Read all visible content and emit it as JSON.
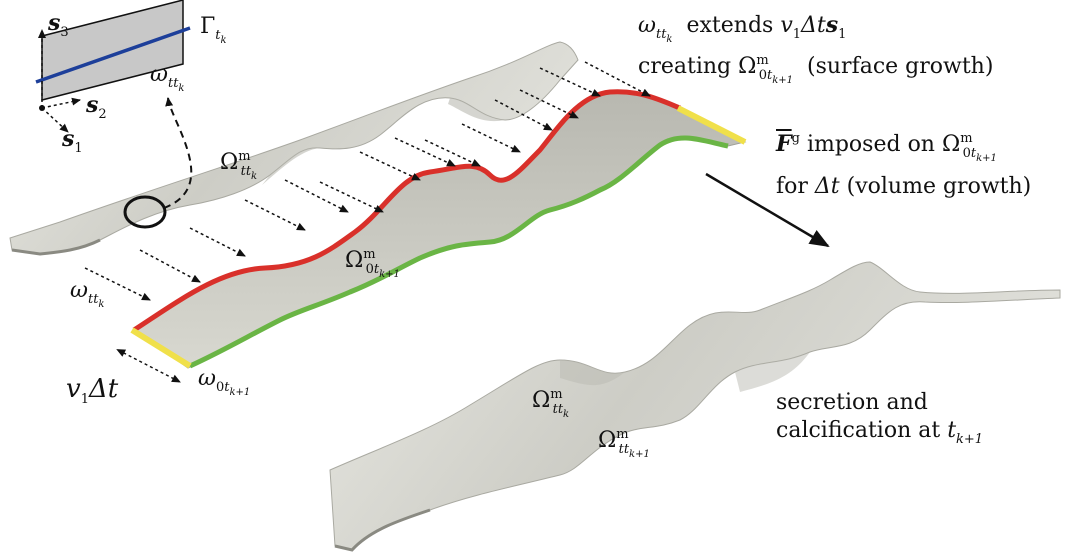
{
  "colors": {
    "surface": "#cfcfc8",
    "surface_light": "#e6e6e0",
    "surface_dark": "#9c9c94",
    "edge_top": "#d9302a",
    "edge_bottom": "#6ab545",
    "edge_end": "#f0e04a",
    "plane": "#c8c8c8",
    "plane_line": "#1d3f9a",
    "arrow": "#111111"
  },
  "labels": {
    "gamma": "Γ",
    "gamma_sub": "t",
    "gamma_subsub": "k",
    "omega": "ω",
    "omega_sub": "t",
    "omega_sub2": "t",
    "omega_subsub": "k",
    "s1": "s",
    "s1_sub": "1",
    "s2": "s",
    "s2_sub": "2",
    "s3": "s",
    "s3_sub": "3",
    "Omega": "Ω",
    "m": "m",
    "zero": "0",
    "k": "k",
    "kplus1": "k+1",
    "v1": "v",
    "one": "1",
    "Delta_t": "Δt",
    "extends_text": "extends",
    "creating_text": "creating",
    "surface_growth": "(surface growth)",
    "imposed_text": "imposed on",
    "F": "F",
    "g": "g",
    "for_text": "for",
    "volume_growth": "(volume growth)",
    "secretion_line1": "secretion and",
    "secretion_line2": "calcification at"
  }
}
